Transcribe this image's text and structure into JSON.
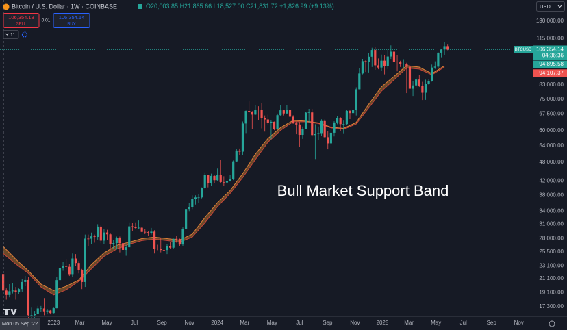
{
  "header": {
    "symbol": "Bitcoin / U.S. Dollar · 1W · COINBASE",
    "ohlc": {
      "open": "O20,003.85",
      "high": "H21,865.66",
      "low": "L18,527.00",
      "close": "C21,831.72",
      "change": "+1,826.99 (+9.13%)"
    },
    "sell_price": "106,354.13",
    "sell": "SELL",
    "spread": "0.01",
    "buy_price": "106,354.14",
    "buy": "BUY",
    "indicators": "11",
    "currency": "USD"
  },
  "chart_data": {
    "type": "candlestick",
    "annotation": "Bull Market Support Band",
    "up_color": "#26a69a",
    "down_color": "#ef5350",
    "open": [
      21800,
      19400,
      18800,
      19300,
      19400,
      19200,
      19600,
      20600,
      20900,
      16300,
      16300,
      16450,
      17100,
      17100,
      16750,
      16840,
      16550,
      17130,
      20880,
      22700,
      23080,
      22940,
      21780,
      24330,
      23560,
      22430,
      20600,
      28000,
      27990,
      28450,
      28330,
      30480,
      27600,
      29230,
      28850,
      26900,
      27120,
      28070,
      27100,
      25850,
      26340,
      30530,
      30460,
      30170,
      30240,
      29350,
      29280,
      29050,
      29400,
      26100,
      26000,
      25840,
      25830,
      26530,
      26260,
      27960,
      27920,
      26850,
      29990,
      34520,
      35030,
      37060,
      37450,
      37450,
      39970,
      43790,
      41370,
      43600,
      42280,
      43950,
      41730,
      41580,
      42030,
      42580,
      48300,
      52140,
      51730,
      63110,
      68970,
      68390,
      67210,
      69650,
      69360,
      65660,
      64940,
      63420,
      63890,
      60790,
      66940,
      69290,
      67760,
      69650,
      66220,
      63180,
      62680,
      58240,
      60800,
      68160,
      68250,
      58160,
      58710,
      58970,
      64220,
      57300,
      54840,
      59120,
      63580,
      65600,
      62820,
      62850,
      69020,
      67930,
      69380,
      80370,
      89850,
      98010,
      97250,
      101170,
      106050,
      95170,
      93720,
      98360,
      94520,
      101300,
      104800,
      97700,
      97500,
      96100,
      96250,
      94270,
      80700,
      82600,
      86100,
      82400,
      78400,
      83700,
      85200,
      93700,
      94300,
      104100,
      106450,
      109000
    ],
    "high": [
      22700,
      19700,
      20300,
      20400,
      19900,
      19700,
      21000,
      21500,
      21400,
      17200,
      16800,
      17400,
      17400,
      18400,
      17000,
      16900,
      17200,
      21300,
      23300,
      23800,
      24200,
      23400,
      25200,
      25100,
      23900,
      22600,
      28800,
      28800,
      29200,
      28800,
      31000,
      30900,
      30000,
      29800,
      29000,
      27700,
      28400,
      28400,
      27300,
      26800,
      31400,
      31300,
      31400,
      31800,
      30400,
      30000,
      29500,
      30200,
      29700,
      26800,
      28100,
      26100,
      26900,
      27400,
      28000,
      28600,
      28000,
      30300,
      35200,
      36000,
      38000,
      38000,
      38400,
      40200,
      44700,
      44000,
      44300,
      43800,
      45900,
      48900,
      43500,
      42200,
      43900,
      48600,
      52800,
      52900,
      64000,
      69200,
      73800,
      68900,
      71700,
      71300,
      72800,
      66800,
      67200,
      64700,
      64000,
      67700,
      71900,
      69500,
      71900,
      70000,
      66900,
      64000,
      63800,
      61800,
      68400,
      70000,
      70000,
      62800,
      61800,
      65000,
      64900,
      59800,
      60600,
      64100,
      66500,
      66000,
      64400,
      69500,
      69500,
      73600,
      81500,
      93500,
      99600,
      98900,
      104000,
      107800,
      108300,
      99900,
      102700,
      102500,
      106400,
      109600,
      106400,
      102500,
      98300,
      99400,
      96900,
      95000,
      85300,
      87400,
      88800,
      84700,
      86000,
      86400,
      95700,
      97900,
      104300,
      107100,
      112000,
      110700
    ],
    "low": [
      19300,
      18200,
      18500,
      19000,
      18200,
      18900,
      19200,
      20000,
      15600,
      15900,
      15500,
      16400,
      16700,
      16300,
      16400,
      16400,
      16500,
      17100,
      20500,
      22300,
      22500,
      21500,
      21400,
      23100,
      21900,
      19600,
      19900,
      26600,
      26900,
      27200,
      27800,
      27100,
      26900,
      27700,
      25800,
      26100,
      25900,
      25400,
      24800,
      24800,
      26300,
      29500,
      29900,
      29900,
      29300,
      28900,
      28600,
      28800,
      25200,
      25800,
      25400,
      24900,
      25100,
      26000,
      26000,
      27200,
      26600,
      26600,
      29900,
      34000,
      34500,
      35600,
      36000,
      37200,
      39800,
      40200,
      40600,
      41400,
      42000,
      41500,
      40700,
      38500,
      41900,
      42300,
      48100,
      50600,
      50600,
      59000,
      68000,
      60800,
      67000,
      64500,
      61000,
      59600,
      62600,
      56500,
      60200,
      60700,
      66600,
      66800,
      67500,
      65000,
      63000,
      58500,
      53500,
      56600,
      60700,
      63500,
      57600,
      49100,
      56100,
      57800,
      57200,
      52600,
      53600,
      57600,
      62800,
      59900,
      58900,
      62400,
      65100,
      67500,
      66800,
      80300,
      89300,
      90800,
      90500,
      94100,
      92200,
      92600,
      91400,
      89300,
      92800,
      99600,
      96200,
      91200,
      94100,
      93400,
      78200,
      76600,
      76700,
      81200,
      81700,
      74500,
      74600,
      83000,
      84800,
      92800,
      93300,
      100800,
      102100,
      105900
    ],
    "close": [
      19400,
      18800,
      19300,
      19400,
      19200,
      19600,
      20600,
      20900,
      16300,
      16300,
      16450,
      17100,
      17100,
      16750,
      16840,
      16550,
      17130,
      20880,
      22700,
      23080,
      22940,
      21780,
      24330,
      23560,
      22430,
      20600,
      28000,
      27990,
      28450,
      28330,
      30480,
      27600,
      29230,
      28850,
      26900,
      27120,
      28070,
      27100,
      25850,
      26340,
      30530,
      30460,
      30170,
      30240,
      29350,
      29280,
      29050,
      29400,
      26100,
      26000,
      25840,
      25830,
      26530,
      26260,
      27960,
      27920,
      26850,
      29990,
      34520,
      35030,
      37060,
      37450,
      37450,
      39970,
      43790,
      41370,
      43600,
      42280,
      43950,
      41730,
      41580,
      42030,
      42580,
      48300,
      52140,
      51730,
      63110,
      68970,
      68390,
      67210,
      69650,
      69360,
      65660,
      64940,
      63420,
      63890,
      60790,
      66940,
      69290,
      67760,
      69650,
      66220,
      63180,
      62680,
      58240,
      60800,
      68160,
      68250,
      58160,
      58710,
      58970,
      64220,
      57300,
      54840,
      59120,
      63580,
      65600,
      62820,
      62850,
      69020,
      67930,
      69380,
      80370,
      89850,
      98010,
      97250,
      101170,
      106050,
      95170,
      93720,
      98360,
      94520,
      101300,
      104800,
      97700,
      97500,
      96100,
      96250,
      94270,
      80700,
      82600,
      86100,
      82400,
      78400,
      83700,
      85200,
      93700,
      94300,
      104100,
      106450,
      109000,
      106354.14
    ],
    "band": {
      "x": [
        0,
        4,
        8,
        12,
        16,
        20,
        24,
        28,
        32,
        36,
        40,
        44,
        48,
        52,
        56,
        60,
        64,
        68,
        72,
        76,
        80,
        84,
        88,
        92,
        96,
        100,
        104,
        108,
        112,
        116,
        120,
        124,
        128,
        132,
        136,
        140
      ],
      "fill": "#8a5a2b",
      "lines": [
        {
          "color": "#e0803a",
          "label_color": "#26a69a",
          "last_label": "94,895.58",
          "values": [
            26500,
            24200,
            22300,
            20300,
            19400,
            20000,
            20900,
            23300,
            25300,
            26700,
            27300,
            28000,
            28300,
            28000,
            27700,
            28900,
            32500,
            36100,
            39300,
            44300,
            50800,
            56800,
            61300,
            64500,
            64200,
            63400,
            61500,
            61000,
            63600,
            72400,
            81800,
            88000,
            95000,
            94000,
            89800,
            94895.58
          ]
        },
        {
          "color": "#c8453a",
          "label_color": "#ef5350",
          "last_label": "94,107.37",
          "values": [
            25200,
            23400,
            21900,
            19900,
            18800,
            19500,
            20700,
            22600,
            24700,
            26000,
            26900,
            27600,
            27900,
            27600,
            27300,
            28300,
            31300,
            35100,
            38500,
            43100,
            48900,
            55300,
            60100,
            63900,
            63900,
            63100,
            61200,
            60600,
            62900,
            70500,
            79300,
            85900,
            93400,
            92700,
            89000,
            94107.37
          ]
        }
      ]
    },
    "last_price": {
      "value": 106354.14,
      "label": "106,354.14",
      "symbol": "BTCUSD",
      "countdown": "04:36:36",
      "color": "#26a69a"
    },
    "cursor_label": "Mon 05 Sep '22",
    "log_scale": true,
    "ylim": [
      16170,
      151000
    ],
    "yticks": [
      {
        "value": 17300,
        "label": "17,300.00"
      },
      {
        "value": 19100,
        "label": "19,100.00"
      },
      {
        "value": 21100,
        "label": "21,100.00"
      },
      {
        "value": 23100,
        "label": "23,100.00"
      },
      {
        "value": 25500,
        "label": "25,500.00"
      },
      {
        "value": 28000,
        "label": "28,000.00"
      },
      {
        "value": 31000,
        "label": "31,000.00"
      },
      {
        "value": 34000,
        "label": "34,000.00"
      },
      {
        "value": 38000,
        "label": "38,000.00"
      },
      {
        "value": 42000,
        "label": "42,000.00"
      },
      {
        "value": 48000,
        "label": "48,000.00"
      },
      {
        "value": 54000,
        "label": "54,000.00"
      },
      {
        "value": 60000,
        "label": "60,000.00"
      },
      {
        "value": 67500,
        "label": "67,500.00"
      },
      {
        "value": 75000,
        "label": "75,000.00"
      },
      {
        "value": 83000,
        "label": "83,000.00"
      },
      {
        "value": 115000,
        "label": "115,000.00"
      },
      {
        "value": 130000,
        "label": "130,000.00"
      }
    ],
    "xlim": [
      -1,
      168
    ],
    "xticks": [
      {
        "value": 16,
        "label": "2023"
      },
      {
        "value": 24.3,
        "label": "Mar"
      },
      {
        "value": 32.9,
        "label": "May"
      },
      {
        "value": 41.6,
        "label": "Jul"
      },
      {
        "value": 50.4,
        "label": "Sep"
      },
      {
        "value": 59.1,
        "label": "Nov"
      },
      {
        "value": 67.9,
        "label": "2024"
      },
      {
        "value": 76.6,
        "label": "Mar"
      },
      {
        "value": 85.3,
        "label": "May"
      },
      {
        "value": 94,
        "label": "Jul"
      },
      {
        "value": 102.9,
        "label": "Sep"
      },
      {
        "value": 111.6,
        "label": "Nov"
      },
      {
        "value": 120.3,
        "label": "2025"
      },
      {
        "value": 128.7,
        "label": "Mar"
      },
      {
        "value": 137.3,
        "label": "May"
      },
      {
        "value": 146,
        "label": "Jul"
      },
      {
        "value": 154.9,
        "label": "Sep"
      },
      {
        "value": 163.6,
        "label": "Nov"
      }
    ]
  }
}
